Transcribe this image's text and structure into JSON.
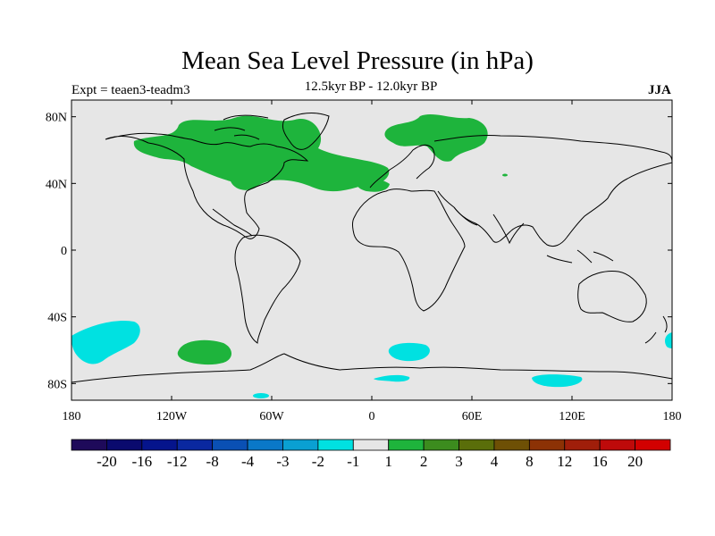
{
  "title": "Mean Sea Level Pressure (in hPa)",
  "subtitle_left": "Expt = teaen3-teadm3",
  "subtitle_center": "12.5kyr BP - 12.0kyr BP",
  "subtitle_right": "JJA",
  "map": {
    "lon_range": [
      -180,
      180
    ],
    "lat_range": [
      -90,
      90
    ],
    "projection": "cylindrical-equidistant",
    "background_color": "#e6e6e6",
    "coastline_color": "#000000",
    "lat_ticks": [
      {
        "value": 80,
        "label": "80N"
      },
      {
        "value": 40,
        "label": "40N"
      },
      {
        "value": 0,
        "label": "0"
      },
      {
        "value": -40,
        "label": "40S"
      },
      {
        "value": -80,
        "label": "80S"
      }
    ],
    "lon_ticks": [
      {
        "value": -180,
        "label": "180"
      },
      {
        "value": -120,
        "label": "120W"
      },
      {
        "value": -60,
        "label": "60W"
      },
      {
        "value": 0,
        "label": "0"
      },
      {
        "value": 60,
        "label": "60E"
      },
      {
        "value": 120,
        "label": "120E"
      },
      {
        "value": 180,
        "label": "180"
      }
    ]
  },
  "colorbar": {
    "colors": [
      "#1e0a5a",
      "#0a0a6e",
      "#05148c",
      "#0a28a0",
      "#0a50b4",
      "#0a78c8",
      "#0aa0d2",
      "#00e1e1",
      "#e6e6e6",
      "#1eb43c",
      "#3c8c1e",
      "#5a6e0a",
      "#6e5005",
      "#8c3205",
      "#a01e0a",
      "#be0a0a",
      "#d20000"
    ],
    "labels": [
      "-20",
      "-16",
      "-12",
      "-8",
      "-4",
      "-3",
      "-2",
      "-1",
      "1",
      "2",
      "3",
      "4",
      "8",
      "12",
      "16",
      "20"
    ]
  }
}
